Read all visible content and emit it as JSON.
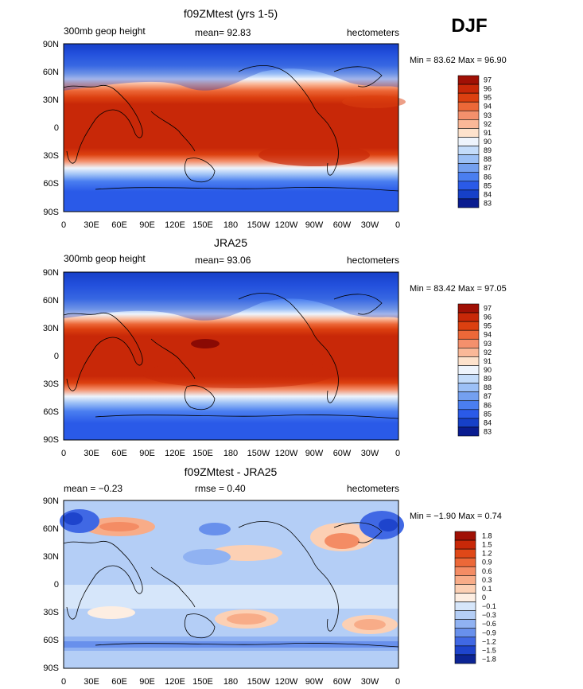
{
  "season": "DJF",
  "lon_labels": [
    "0",
    "30E",
    "60E",
    "90E",
    "120E",
    "150E",
    "180",
    "150W",
    "120W",
    "90W",
    "60W",
    "30W",
    "0"
  ],
  "lat_labels": [
    "90N",
    "60N",
    "30N",
    "0",
    "30S",
    "60S",
    "90S"
  ],
  "panels": [
    {
      "title": "f09ZMtest (yrs 1-5)",
      "left_label": "300mb geop height",
      "center_label": "mean=   92.83",
      "right_label": "hectometers",
      "stats": "Min =   83.62  Max =   96.90",
      "colorbar_labels": [
        "97",
        "96",
        "95",
        "94",
        "93",
        "92",
        "91",
        "90",
        "89",
        "88",
        "87",
        "86",
        "85",
        "84",
        "83"
      ],
      "colorbar_colors": [
        "#a01005",
        "#c82808",
        "#dc4010",
        "#ec6838",
        "#f4906c",
        "#fab898",
        "#fde2cc",
        "#eef4fc",
        "#c4dcfa",
        "#9cc0f6",
        "#74a0f0",
        "#4a7ef0",
        "#2a5ae8",
        "#1640c8",
        "#0a1c90"
      ]
    },
    {
      "title": "JRA25",
      "left_label": "300mb geop height",
      "center_label": "mean=   93.06",
      "right_label": "hectometers",
      "stats": "Min =   83.42  Max =   97.05",
      "colorbar_labels": [
        "97",
        "96",
        "95",
        "94",
        "93",
        "92",
        "91",
        "90",
        "89",
        "88",
        "87",
        "86",
        "85",
        "84",
        "83"
      ],
      "colorbar_colors": [
        "#a01005",
        "#c82808",
        "#dc4010",
        "#ec6838",
        "#f4906c",
        "#fab898",
        "#fde2cc",
        "#eef4fc",
        "#c4dcfa",
        "#9cc0f6",
        "#74a0f0",
        "#4a7ef0",
        "#2a5ae8",
        "#1640c8",
        "#0a1c90"
      ]
    },
    {
      "title": "f09ZMtest - JRA25",
      "left_label": "mean =   −0.23",
      "center_label": "rmse =   0.40",
      "right_label": "hectometers",
      "stats": "Min =   −1.90  Max =     0.74",
      "colorbar_labels": [
        "1.8",
        "1.5",
        "1.2",
        "0.9",
        "0.6",
        "0.3",
        "0.1",
        "0",
        "−0.1",
        "−0.3",
        "−0.6",
        "−0.9",
        "−1.2",
        "−1.5",
        "−1.8"
      ],
      "colorbar_colors": [
        "#a01005",
        "#c82808",
        "#e04818",
        "#ec6838",
        "#f48c64",
        "#f8ac88",
        "#fcd0b4",
        "#fdeee2",
        "#d6e6fa",
        "#b4cef6",
        "#90b2f2",
        "#6890ec",
        "#4068e4",
        "#1e44cc",
        "#0c2494"
      ]
    }
  ]
}
